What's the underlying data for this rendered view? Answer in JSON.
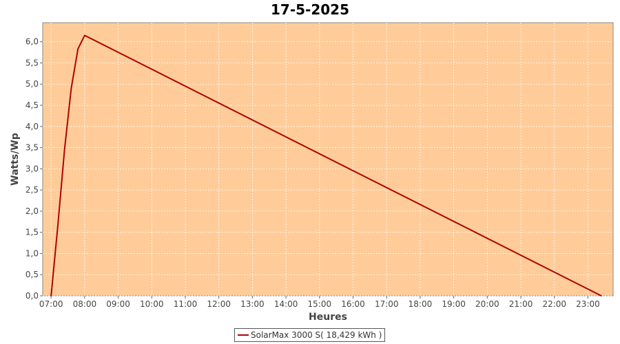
{
  "chart_data": {
    "type": "line",
    "title": "17-5-2025",
    "xlabel": "Heures",
    "ylabel": "Watts/Wp",
    "x_ticks": [
      "07:00",
      "08:00",
      "09:00",
      "10:00",
      "11:00",
      "12:00",
      "13:00",
      "14:00",
      "15:00",
      "16:00",
      "17:00",
      "18:00",
      "19:00",
      "20:00",
      "21:00",
      "22:00",
      "23:00"
    ],
    "y_ticks": [
      "0,0",
      "0,5",
      "1,0",
      "1,5",
      "2,0",
      "2,5",
      "3,0",
      "3,5",
      "4,0",
      "4,5",
      "5,0",
      "5,5",
      "6,0"
    ],
    "xlim": [
      "06:45",
      "23:45"
    ],
    "ylim": [
      0,
      6.45
    ],
    "grid": true,
    "legend_position": "bottom-center",
    "series": [
      {
        "name": "SolarMax 3000 S( 18,429 kWh )",
        "color": "#b00000",
        "x": [
          "07:00",
          "07:12",
          "07:24",
          "07:36",
          "07:48",
          "08:00",
          "23:24"
        ],
        "y": [
          0.0,
          1.65,
          3.45,
          4.9,
          5.83,
          6.15,
          0.0
        ]
      }
    ]
  },
  "colors": {
    "plot_background": "#ffcc99",
    "series_line": "#b00000",
    "grid": "#ffffff"
  }
}
